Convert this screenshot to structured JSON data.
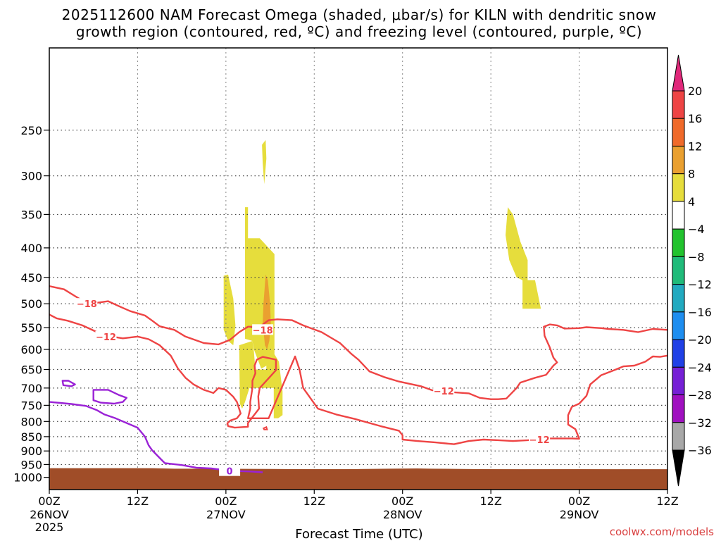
{
  "chart_data": {
    "type": "heatmap",
    "title_line1": "2025112600 NAM Forecast Omega (shaded, μbar/s) for KILN with dendritic snow",
    "title_line2": "growth region (contoured, red, ºC) and freezing level (contoured, purple, ºC)",
    "xlabel": "Forecast Time (UTC)",
    "x_ticks": [
      {
        "hour": 0,
        "label": "00Z",
        "date": "26NOV",
        "year": "2025"
      },
      {
        "hour": 12,
        "label": "12Z",
        "date": "",
        "year": ""
      },
      {
        "hour": 24,
        "label": "00Z",
        "date": "27NOV",
        "year": ""
      },
      {
        "hour": 36,
        "label": "12Z",
        "date": "",
        "year": ""
      },
      {
        "hour": 48,
        "label": "00Z",
        "date": "28NOV",
        "year": ""
      },
      {
        "hour": 60,
        "label": "12Z",
        "date": "",
        "year": ""
      },
      {
        "hour": 72,
        "label": "00Z",
        "date": "29NOV",
        "year": ""
      },
      {
        "hour": 84,
        "label": "12Z",
        "date": "",
        "year": ""
      }
    ],
    "xlim": [
      0,
      84
    ],
    "y_ticks": [
      250,
      300,
      350,
      400,
      450,
      500,
      550,
      600,
      650,
      700,
      750,
      800,
      850,
      900,
      950,
      1000
    ],
    "y_scale": "log-pressure",
    "ylim": [
      1050,
      180
    ],
    "credit": "coolwx.com/models",
    "colorbar": {
      "labels": [
        "20",
        "16",
        "12",
        "8",
        "4",
        "−4",
        "−8",
        "−12",
        "−16",
        "−20",
        "−24",
        "−28",
        "−32",
        "−36"
      ],
      "colors": [
        "#e0287a",
        "#ee4444",
        "#f06a2a",
        "#eaa030",
        "#e6dd3c",
        "#ffffff",
        "#22c32e",
        "#20bb7a",
        "#22aac0",
        "#1e8ef0",
        "#2040e6",
        "#7620d6",
        "#a010c0",
        "#a8a8a8",
        "#000000"
      ]
    },
    "omega_regions": [
      {
        "color": "#e6dd3c",
        "points": [
          [
            23.7,
            447
          ],
          [
            24.3,
            445
          ],
          [
            25.0,
            490
          ],
          [
            25.3,
            545
          ],
          [
            25.0,
            590
          ],
          [
            24.3,
            580
          ],
          [
            23.7,
            555
          ]
        ]
      },
      {
        "color": "#e6dd3c",
        "points": [
          [
            25.8,
            590
          ],
          [
            27.6,
            580
          ],
          [
            27.8,
            605
          ],
          [
            28.0,
            650
          ],
          [
            28.8,
            650
          ],
          [
            28.8,
            700
          ],
          [
            27.2,
            700
          ],
          [
            26.6,
            740
          ],
          [
            26.2,
            760
          ],
          [
            25.9,
            745
          ]
        ]
      },
      {
        "color": "#e6dd3c",
        "points": [
          [
            26.6,
            340
          ],
          [
            27.0,
            340
          ],
          [
            27.0,
            385
          ],
          [
            28.5,
            385
          ],
          [
            28.6,
            385
          ],
          [
            30.6,
            410
          ],
          [
            30.6,
            610
          ],
          [
            30.0,
            635
          ],
          [
            28.8,
            648
          ],
          [
            27.8,
            600
          ],
          [
            27.6,
            580
          ],
          [
            26.6,
            575
          ],
          [
            26.6,
            480
          ]
        ]
      },
      {
        "color": "#e6dd3c",
        "points": [
          [
            28.8,
            650
          ],
          [
            29.5,
            650
          ],
          [
            29.5,
            600
          ],
          [
            30.2,
            600
          ],
          [
            31.2,
            630
          ],
          [
            31.7,
            710
          ],
          [
            31.7,
            780
          ],
          [
            31.1,
            790
          ],
          [
            30.5,
            790
          ],
          [
            30.5,
            700
          ],
          [
            29.5,
            700
          ],
          [
            28.8,
            700
          ]
        ]
      },
      {
        "color": "#e6dd3c",
        "points": [
          [
            28.9,
            265
          ],
          [
            29.4,
            260
          ],
          [
            29.5,
            280
          ],
          [
            29.3,
            300
          ],
          [
            29.2,
            310
          ],
          [
            29.0,
            285
          ]
        ]
      },
      {
        "color": "#eaa030",
        "points": [
          [
            29.4,
            445
          ],
          [
            29.7,
            455
          ],
          [
            30.0,
            500
          ],
          [
            30.1,
            540
          ],
          [
            29.9,
            580
          ],
          [
            29.6,
            600
          ],
          [
            29.3,
            590
          ],
          [
            29.0,
            540
          ],
          [
            29.1,
            500
          ]
        ]
      },
      {
        "color": "#e6dd3c",
        "points": [
          [
            62.3,
            340
          ],
          [
            63.0,
            350
          ],
          [
            64.0,
            390
          ],
          [
            65.0,
            420
          ],
          [
            65.0,
            455
          ],
          [
            66.0,
            455
          ],
          [
            66.8,
            510
          ],
          [
            65.0,
            510
          ],
          [
            64.3,
            510
          ],
          [
            64.3,
            455
          ],
          [
            63.5,
            450
          ],
          [
            62.5,
            420
          ],
          [
            62.0,
            380
          ]
        ]
      }
    ],
    "contours": [
      {
        "level": "−18",
        "color": "#ee4444",
        "label_pos": [
          5.1,
          500
        ],
        "label2_pos": [
          29.0,
          555
        ],
        "points": [
          [
            0,
            466
          ],
          [
            2,
            472
          ],
          [
            3.5,
            485
          ],
          [
            5.0,
            498
          ],
          [
            6.5,
            498
          ],
          [
            8,
            495
          ],
          [
            9.5,
            505
          ],
          [
            11,
            515
          ],
          [
            13,
            524
          ],
          [
            14,
            535
          ],
          [
            15,
            547
          ],
          [
            17,
            555
          ],
          [
            18.5,
            570
          ],
          [
            21,
            585
          ],
          [
            23,
            588
          ],
          [
            24.5,
            578
          ],
          [
            25.8,
            560
          ],
          [
            27,
            548
          ],
          [
            28.6,
            548
          ],
          [
            29.8,
            534
          ],
          [
            31,
            532
          ],
          [
            33,
            534
          ],
          [
            34.5,
            545
          ],
          [
            37,
            560
          ],
          [
            39.5,
            585
          ],
          [
            41,
            610
          ],
          [
            42,
            625
          ],
          [
            43.5,
            655
          ],
          [
            45.5,
            670
          ],
          [
            47.5,
            682
          ],
          [
            50.5,
            695
          ],
          [
            52,
            706
          ],
          [
            53,
            708
          ],
          [
            54,
            710
          ],
          [
            55,
            712
          ],
          [
            57,
            715
          ],
          [
            58.5,
            728
          ],
          [
            60,
            732
          ],
          [
            61,
            732
          ],
          [
            62.1,
            730
          ],
          [
            63.5,
            700
          ],
          [
            64,
            685
          ],
          [
            66,
            672
          ],
          [
            67.5,
            664
          ],
          [
            68,
            652
          ],
          [
            68.5,
            640
          ],
          [
            69,
            632
          ],
          [
            68.5,
            620
          ],
          [
            68.0,
            595
          ],
          [
            67.3,
            568
          ],
          [
            67.2,
            548
          ],
          [
            68,
            543
          ],
          [
            69,
            545
          ],
          [
            70,
            552
          ],
          [
            72,
            551
          ],
          [
            73,
            549
          ],
          [
            75,
            551
          ],
          [
            76,
            553
          ],
          [
            78,
            555
          ],
          [
            80,
            560
          ],
          [
            82,
            553
          ],
          [
            84,
            555
          ]
        ]
      },
      {
        "level": "−12",
        "color": "#ee4444",
        "label_pos": [
          7.7,
          570
        ],
        "label2_pos": [
          53.6,
          708
        ],
        "label3_pos": [
          66.6,
          860
        ],
        "points": [
          [
            0,
            522
          ],
          [
            1,
            530
          ],
          [
            2.5,
            535
          ],
          [
            4.5,
            545
          ],
          [
            6.5,
            560
          ],
          [
            8.5,
            570
          ],
          [
            10,
            574
          ],
          [
            12,
            570
          ],
          [
            13.5,
            576
          ],
          [
            15,
            590
          ],
          [
            16.5,
            615
          ],
          [
            17.5,
            648
          ],
          [
            18.5,
            672
          ],
          [
            19.6,
            690
          ],
          [
            21,
            705
          ],
          [
            22.3,
            714
          ],
          [
            23,
            700
          ],
          [
            24,
            705
          ],
          [
            25,
            725
          ],
          [
            25.5,
            740
          ],
          [
            26,
            775
          ],
          [
            25.5,
            790
          ],
          [
            24.6,
            797
          ],
          [
            24.2,
            806
          ],
          [
            24.3,
            815
          ],
          [
            25.2,
            820
          ],
          [
            27,
            817
          ],
          [
            27,
            805
          ],
          [
            28.5,
            760
          ],
          [
            28.4,
            724
          ],
          [
            28.6,
            700
          ],
          [
            30.8,
            652
          ],
          [
            30.8,
            625
          ],
          [
            29.0,
            618
          ],
          [
            28.2,
            625
          ],
          [
            27.9,
            640
          ],
          [
            28.0,
            660
          ],
          [
            27.6,
            680
          ],
          [
            27.6,
            700
          ],
          [
            27.3,
            740
          ],
          [
            27.3,
            760
          ],
          [
            27.0,
            790
          ],
          [
            29.8,
            790
          ],
          [
            33.4,
            617
          ],
          [
            34.0,
            650
          ],
          [
            34.5,
            700
          ],
          [
            36.5,
            760
          ],
          [
            39,
            778
          ],
          [
            41.5,
            792
          ],
          [
            45,
            815
          ],
          [
            47.5,
            830
          ],
          [
            48,
            845
          ],
          [
            48.0,
            860
          ],
          [
            50,
            865
          ],
          [
            52.5,
            870
          ],
          [
            55,
            876
          ],
          [
            57,
            865
          ],
          [
            59,
            860
          ],
          [
            61,
            862
          ],
          [
            63,
            865
          ],
          [
            65,
            862
          ],
          [
            66,
            860
          ],
          [
            68,
            856
          ],
          [
            71,
            856
          ],
          [
            72,
            857
          ],
          [
            71.5,
            825
          ],
          [
            70.5,
            810
          ],
          [
            70.5,
            780
          ],
          [
            71,
            755
          ],
          [
            72,
            745
          ],
          [
            73,
            722
          ],
          [
            73.5,
            690
          ],
          [
            75,
            665
          ],
          [
            77,
            650
          ],
          [
            78,
            642
          ],
          [
            79.5,
            640
          ],
          [
            81,
            630
          ],
          [
            82,
            617
          ],
          [
            83,
            618
          ],
          [
            84,
            615
          ]
        ]
      },
      {
        "level": "0",
        "color": "#9a22d6",
        "label_pos": [
          24.5,
          975
        ],
        "points": [
          [
            0,
            740
          ],
          [
            1.5,
            743
          ],
          [
            3,
            746
          ],
          [
            5,
            752
          ],
          [
            6.5,
            765
          ],
          [
            7.5,
            778
          ],
          [
            9,
            790
          ],
          [
            10.5,
            805
          ],
          [
            12,
            820
          ],
          [
            13,
            850
          ],
          [
            13.5,
            880
          ],
          [
            14,
            898
          ],
          [
            14.8,
            920
          ],
          [
            15.7,
            945
          ],
          [
            18,
            952
          ],
          [
            20,
            962
          ],
          [
            22,
            965
          ],
          [
            24,
            972
          ],
          [
            25.5,
            975
          ],
          [
            27.5,
            977
          ],
          [
            29,
            980
          ]
        ]
      },
      {
        "level": "",
        "color": "#9a22d6",
        "closed": true,
        "points": [
          [
            1.8,
            680
          ],
          [
            2.6,
            680
          ],
          [
            3.5,
            690
          ],
          [
            3.0,
            695
          ],
          [
            1.9,
            692
          ]
        ]
      },
      {
        "level": "",
        "color": "#9a22d6",
        "closed": true,
        "points": [
          [
            6.0,
            705
          ],
          [
            8.0,
            705
          ],
          [
            9.5,
            720
          ],
          [
            10.5,
            728
          ],
          [
            10.0,
            740
          ],
          [
            8.8,
            745
          ],
          [
            7.0,
            742
          ],
          [
            6.0,
            735
          ]
        ]
      }
    ],
    "small_loop": {
      "level": "",
      "color": "#ee4444",
      "points": [
        [
          29.1,
          822
        ],
        [
          29.5,
          818
        ],
        [
          29.6,
          826
        ],
        [
          29.2,
          826
        ]
      ]
    },
    "terrain_color": "#a04d28"
  }
}
